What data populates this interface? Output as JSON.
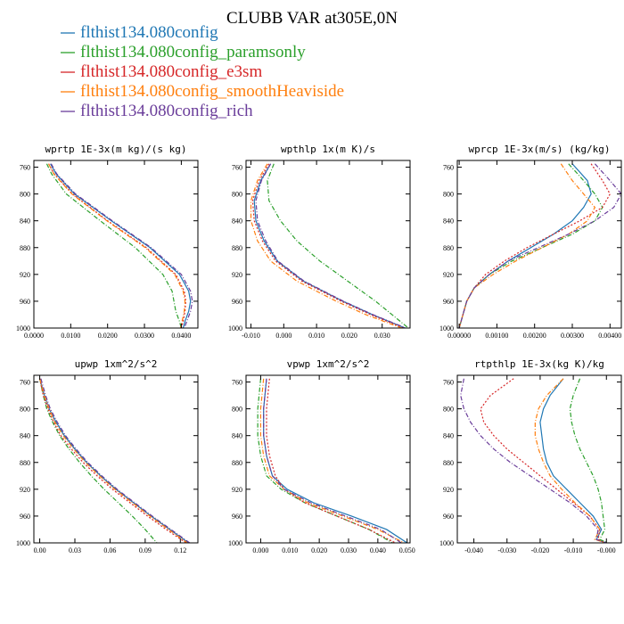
{
  "figure": {
    "title": "CLUBB VAR at305E,0N"
  },
  "legend": [
    {
      "label": "flthist134.080config",
      "color": "#1f77b4",
      "dash": "solid"
    },
    {
      "label": "flthist134.080config_paramsonly",
      "color": "#2ca02c",
      "dash": "dashdot"
    },
    {
      "label": "flthist134.080config_e3sm",
      "color": "#d62728",
      "dash": "dotted"
    },
    {
      "label": "flthist134.080config_smoothHeaviside",
      "color": "#ff7f0e",
      "dash": "dashdot"
    },
    {
      "label": "flthist134.080config_rich",
      "color": "#6a3d9a",
      "dash": "dashdot"
    }
  ],
  "chart_data": [
    {
      "type": "line",
      "title": "wprtp  1E-3x(m kg)/(s kg)",
      "xlim": [
        0.0,
        0.0445
      ],
      "ylim": [
        1000,
        750
      ],
      "xticks": [
        0.0,
        0.01,
        0.02,
        0.03,
        0.04
      ],
      "xtick_labels": [
        "0.0000",
        "0.0100",
        "0.0200",
        "0.0300",
        "0.0400"
      ],
      "yticks": [
        760,
        800,
        840,
        880,
        920,
        960,
        1000
      ],
      "y": [
        755,
        770,
        800,
        840,
        880,
        920,
        945,
        960,
        975,
        990,
        1000
      ],
      "series": [
        {
          "values": [
            0.0045,
            0.006,
            0.011,
            0.021,
            0.0315,
            0.0395,
            0.042,
            0.0425,
            0.042,
            0.041,
            0.0405
          ]
        },
        {
          "values": [
            0.0035,
            0.0048,
            0.0088,
            0.018,
            0.0275,
            0.035,
            0.0375,
            0.038,
            0.0385,
            0.0395,
            0.04
          ]
        },
        {
          "values": [
            0.004,
            0.0055,
            0.0105,
            0.02,
            0.0305,
            0.0385,
            0.0408,
            0.0412,
            0.041,
            0.0405,
            0.04
          ]
        },
        {
          "values": [
            0.004,
            0.0054,
            0.0103,
            0.0198,
            0.0302,
            0.0382,
            0.0405,
            0.041,
            0.0408,
            0.0402,
            0.0398
          ]
        },
        {
          "values": [
            0.0047,
            0.0062,
            0.0113,
            0.0213,
            0.0318,
            0.04,
            0.0425,
            0.043,
            0.0425,
            0.0415,
            0.0408
          ]
        }
      ]
    },
    {
      "type": "line",
      "title": "wpthlp  1x(m K)/s",
      "xlim": [
        -0.0115,
        0.0385
      ],
      "ylim": [
        1000,
        750
      ],
      "xticks": [
        -0.01,
        0.0,
        0.01,
        0.02,
        0.03
      ],
      "xtick_labels": [
        "-0.010",
        "0.000",
        "0.010",
        "0.020",
        "0.030"
      ],
      "yticks": [
        760,
        800,
        840,
        880,
        920,
        960,
        1000
      ],
      "y": [
        755,
        780,
        810,
        840,
        870,
        900,
        930,
        960,
        980,
        1000
      ],
      "series": [
        {
          "values": [
            -0.004,
            -0.007,
            -0.009,
            -0.0085,
            -0.006,
            -0.002,
            0.006,
            0.018,
            0.027,
            0.037
          ]
        },
        {
          "values": [
            -0.003,
            -0.005,
            -0.0045,
            -0.001,
            0.004,
            0.011,
            0.0195,
            0.028,
            0.033,
            0.038
          ]
        },
        {
          "values": [
            -0.0045,
            -0.0075,
            -0.0095,
            -0.009,
            -0.0065,
            -0.0025,
            0.0055,
            0.0175,
            0.0265,
            0.0365
          ]
        },
        {
          "values": [
            -0.005,
            -0.008,
            -0.01,
            -0.01,
            -0.008,
            -0.004,
            0.004,
            0.016,
            0.025,
            0.036
          ]
        },
        {
          "values": [
            -0.004,
            -0.0068,
            -0.0085,
            -0.008,
            -0.0055,
            -0.0018,
            0.0062,
            0.0182,
            0.0272,
            0.0372
          ]
        }
      ]
    },
    {
      "type": "line",
      "title": "wprcp  1E-3x(m/s) (kg/kg)",
      "xlim": [
        -5e-05,
        0.0043
      ],
      "ylim": [
        1000,
        750
      ],
      "xticks": [
        0.0,
        0.001,
        0.002,
        0.003,
        0.004
      ],
      "xtick_labels": [
        "0.00000",
        "0.00100",
        "0.00200",
        "0.00300",
        "0.00400"
      ],
      "yticks": [
        760,
        800,
        840,
        880,
        920,
        960,
        1000
      ],
      "y": [
        755,
        780,
        800,
        820,
        840,
        860,
        880,
        900,
        920,
        940,
        960,
        980,
        1000
      ],
      "series": [
        {
          "values": [
            0.003,
            0.0034,
            0.0035,
            0.0033,
            0.003,
            0.0025,
            0.0019,
            0.0013,
            0.0008,
            0.0004,
            0.0002,
            0.0001,
            0.0
          ]
        },
        {
          "values": [
            0.0029,
            0.0033,
            0.0036,
            0.0038,
            0.0036,
            0.003,
            0.0022,
            0.0014,
            0.0008,
            0.0004,
            0.0002,
            0.0001,
            0.0
          ]
        },
        {
          "values": [
            0.0035,
            0.0038,
            0.004,
            0.0038,
            0.0032,
            0.0025,
            0.0018,
            0.0012,
            0.0007,
            0.0004,
            0.0002,
            0.0001,
            0.0
          ]
        },
        {
          "values": [
            0.0027,
            0.003,
            0.0033,
            0.0036,
            0.0034,
            0.0029,
            0.0022,
            0.0015,
            0.0009,
            0.0004,
            0.0002,
            0.0001,
            0.0
          ]
        },
        {
          "values": [
            0.0036,
            0.004,
            0.0043,
            0.0041,
            0.0036,
            0.0029,
            0.0021,
            0.0013,
            0.0008,
            0.0004,
            0.0002,
            0.0001,
            0.0
          ]
        }
      ]
    },
    {
      "type": "line",
      "title": "upwp  1xm^2/s^2",
      "xlim": [
        -0.005,
        0.135
      ],
      "ylim": [
        1000,
        750
      ],
      "xticks": [
        0.0,
        0.03,
        0.06,
        0.09,
        0.12
      ],
      "xtick_labels": [
        "0.00",
        "0.03",
        "0.06",
        "0.09",
        "0.12"
      ],
      "yticks": [
        760,
        800,
        840,
        880,
        920,
        960,
        1000
      ],
      "y": [
        755,
        780,
        800,
        820,
        840,
        860,
        880,
        900,
        920,
        940,
        960,
        980,
        1000
      ],
      "series": [
        {
          "values": [
            0.0,
            0.004,
            0.008,
            0.014,
            0.021,
            0.03,
            0.04,
            0.052,
            0.065,
            0.08,
            0.095,
            0.111,
            0.127
          ]
        },
        {
          "values": [
            0.0,
            0.003,
            0.006,
            0.011,
            0.017,
            0.025,
            0.034,
            0.044,
            0.055,
            0.067,
            0.079,
            0.09,
            0.1
          ]
        },
        {
          "values": [
            0.0,
            0.003,
            0.007,
            0.012,
            0.018,
            0.027,
            0.037,
            0.049,
            0.062,
            0.077,
            0.092,
            0.108,
            0.125
          ]
        },
        {
          "values": [
            0.0,
            0.004,
            0.008,
            0.013,
            0.02,
            0.029,
            0.039,
            0.051,
            0.064,
            0.079,
            0.094,
            0.11,
            0.126
          ]
        },
        {
          "values": [
            0.001,
            0.005,
            0.009,
            0.015,
            0.022,
            0.031,
            0.041,
            0.053,
            0.066,
            0.081,
            0.096,
            0.112,
            0.128
          ]
        }
      ]
    },
    {
      "type": "line",
      "title": "vpwp  1xm^2/s^2",
      "xlim": [
        -0.005,
        0.051
      ],
      "ylim": [
        1000,
        750
      ],
      "xticks": [
        0.0,
        0.01,
        0.02,
        0.03,
        0.04,
        0.05
      ],
      "xtick_labels": [
        "0.000",
        "0.010",
        "0.020",
        "0.030",
        "0.040",
        "0.050"
      ],
      "yticks": [
        760,
        800,
        840,
        880,
        920,
        960,
        1000
      ],
      "y": [
        755,
        800,
        840,
        870,
        900,
        920,
        940,
        960,
        980,
        1000
      ],
      "series": [
        {
          "values": [
            0.002,
            0.001,
            0.001,
            0.002,
            0.004,
            0.009,
            0.018,
            0.031,
            0.043,
            0.05
          ]
        },
        {
          "values": [
            0.0,
            -0.001,
            -0.001,
            0.0,
            0.002,
            0.007,
            0.015,
            0.026,
            0.037,
            0.045
          ]
        },
        {
          "values": [
            0.003,
            0.002,
            0.002,
            0.003,
            0.005,
            0.008,
            0.015,
            0.026,
            0.037,
            0.046
          ]
        },
        {
          "values": [
            0.001,
            0.0,
            0.0,
            0.001,
            0.003,
            0.008,
            0.016,
            0.028,
            0.04,
            0.049
          ]
        },
        {
          "values": [
            0.002,
            0.001,
            0.001,
            0.002,
            0.004,
            0.008,
            0.017,
            0.029,
            0.041,
            0.048
          ]
        }
      ]
    },
    {
      "type": "line",
      "title": "rtpthlp  1E-3x(kg K)/kg",
      "xlim": [
        -0.045,
        0.0045
      ],
      "ylim": [
        1000,
        750
      ],
      "xticks": [
        -0.04,
        -0.03,
        -0.02,
        -0.01,
        0.0
      ],
      "xtick_labels": [
        "-0.040",
        "-0.030",
        "-0.020",
        "-0.010",
        "-0.000"
      ],
      "yticks": [
        760,
        800,
        840,
        880,
        920,
        960,
        1000
      ],
      "y": [
        755,
        780,
        800,
        820,
        840,
        860,
        880,
        900,
        920,
        940,
        960,
        980,
        995,
        1000
      ],
      "series": [
        {
          "values": [
            -0.013,
            -0.017,
            -0.019,
            -0.02,
            -0.0195,
            -0.019,
            -0.018,
            -0.016,
            -0.012,
            -0.008,
            -0.004,
            -0.0015,
            -0.003,
            0.0
          ]
        },
        {
          "values": [
            -0.008,
            -0.01,
            -0.011,
            -0.0105,
            -0.0095,
            -0.008,
            -0.006,
            -0.004,
            -0.0025,
            -0.0015,
            -0.001,
            -0.0005,
            -0.002,
            0.0005
          ]
        },
        {
          "values": [
            -0.028,
            -0.035,
            -0.038,
            -0.037,
            -0.034,
            -0.03,
            -0.025,
            -0.02,
            -0.015,
            -0.01,
            -0.005,
            -0.002,
            -0.0025,
            -0.0005
          ]
        },
        {
          "values": [
            -0.013,
            -0.018,
            -0.0205,
            -0.0215,
            -0.0215,
            -0.0205,
            -0.019,
            -0.017,
            -0.0135,
            -0.0095,
            -0.005,
            -0.002,
            -0.0035,
            0.0
          ]
        },
        {
          "values": [
            -0.043,
            -0.044,
            -0.043,
            -0.041,
            -0.038,
            -0.034,
            -0.029,
            -0.023,
            -0.017,
            -0.011,
            -0.006,
            -0.0025,
            -0.003,
            0.0
          ]
        }
      ]
    }
  ]
}
